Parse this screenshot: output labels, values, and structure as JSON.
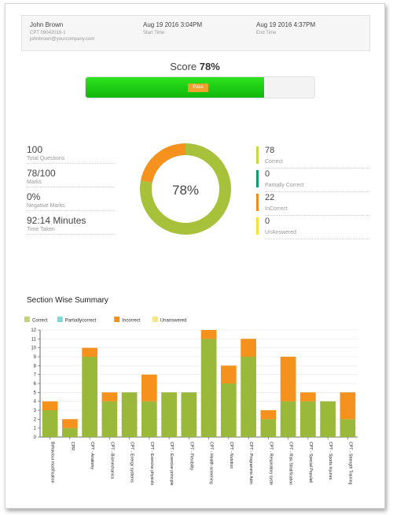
{
  "user": {
    "name": "John Brown",
    "course": "CPT 09042016-1",
    "email": "johnbrown@yourcompany.com"
  },
  "times": {
    "start": "Aug 19 2016 3:04PM",
    "start_label": "Start Time",
    "end": "Aug 19 2016 4:37PM",
    "end_label": "End Time"
  },
  "score": {
    "label": "Score",
    "value_text": "78%",
    "fraction": 0.78,
    "badge": "Pass"
  },
  "stats": [
    {
      "value": "100",
      "label": "Total Questions"
    },
    {
      "value": "78/100",
      "label": "Marks"
    },
    {
      "value": "0%",
      "label": "Negative Marks"
    },
    {
      "value": "92:14 Minutes",
      "label": "Time Taken"
    }
  ],
  "answers": [
    {
      "value": "78",
      "label": "Correct",
      "color": "#c6d948"
    },
    {
      "value": "0",
      "label": "Partially Correct",
      "color": "#0f9b6e"
    },
    {
      "value": "22",
      "label": "InCorrect",
      "color": "#f28a1c"
    },
    {
      "value": "0",
      "label": "UnAnswered",
      "color": "#f2e23a"
    }
  ],
  "donut": {
    "center_text": "78%",
    "slices": [
      {
        "name": "Correct",
        "value": 78,
        "color": "#a7c23a"
      },
      {
        "name": "InCorrect",
        "value": 22,
        "color": "#f5921e"
      }
    ]
  },
  "section": {
    "title": "Section Wise Summary"
  },
  "chart_data": {
    "type": "bar",
    "stacked": true,
    "legend": [
      {
        "name": "Correct",
        "color": "#c2d47a"
      },
      {
        "name": "Partiallycorrect",
        "color": "#7fd8d8"
      },
      {
        "name": "Incorrect",
        "color": "#f5921e"
      },
      {
        "name": "Unanswered",
        "color": "#f6e68a"
      }
    ],
    "categories": [
      "Behaviour modification",
      "CPR",
      "CPT - Anatomy",
      "CPT - Biomechanics",
      "CPT - Energy systems",
      "CPT - Exercise physiolo",
      "CPT - Exercise principle",
      "CPT - Flexibility",
      "CPT - Health screening",
      "CPT - Nutrition",
      "CPT - Programme Adm",
      "CPT - Respiratory syste",
      "CPT - Risk Stratification",
      "CPT - Special Populati",
      "CPT - Sports Injuries",
      "CPT - Strength Training"
    ],
    "series": [
      {
        "name": "Correct",
        "values": [
          3,
          1,
          9,
          4,
          5,
          4,
          5,
          5,
          11,
          6,
          9,
          2,
          4,
          4,
          4,
          2
        ]
      },
      {
        "name": "Partiallycorrect",
        "values": [
          0,
          0,
          0,
          0,
          0,
          0,
          0,
          0,
          0,
          0,
          0,
          0,
          0,
          0,
          0,
          0
        ]
      },
      {
        "name": "Incorrect",
        "values": [
          1,
          1,
          1,
          1,
          0,
          3,
          0,
          0,
          1,
          2,
          2,
          1,
          5,
          1,
          0,
          3
        ]
      },
      {
        "name": "Unanswered",
        "values": [
          0,
          0,
          0,
          0,
          0,
          0,
          0,
          0,
          0,
          0,
          0,
          0,
          0,
          0,
          0,
          0
        ]
      }
    ],
    "ylim": [
      0,
      12
    ],
    "grid": true,
    "legend_position": "top-left"
  }
}
